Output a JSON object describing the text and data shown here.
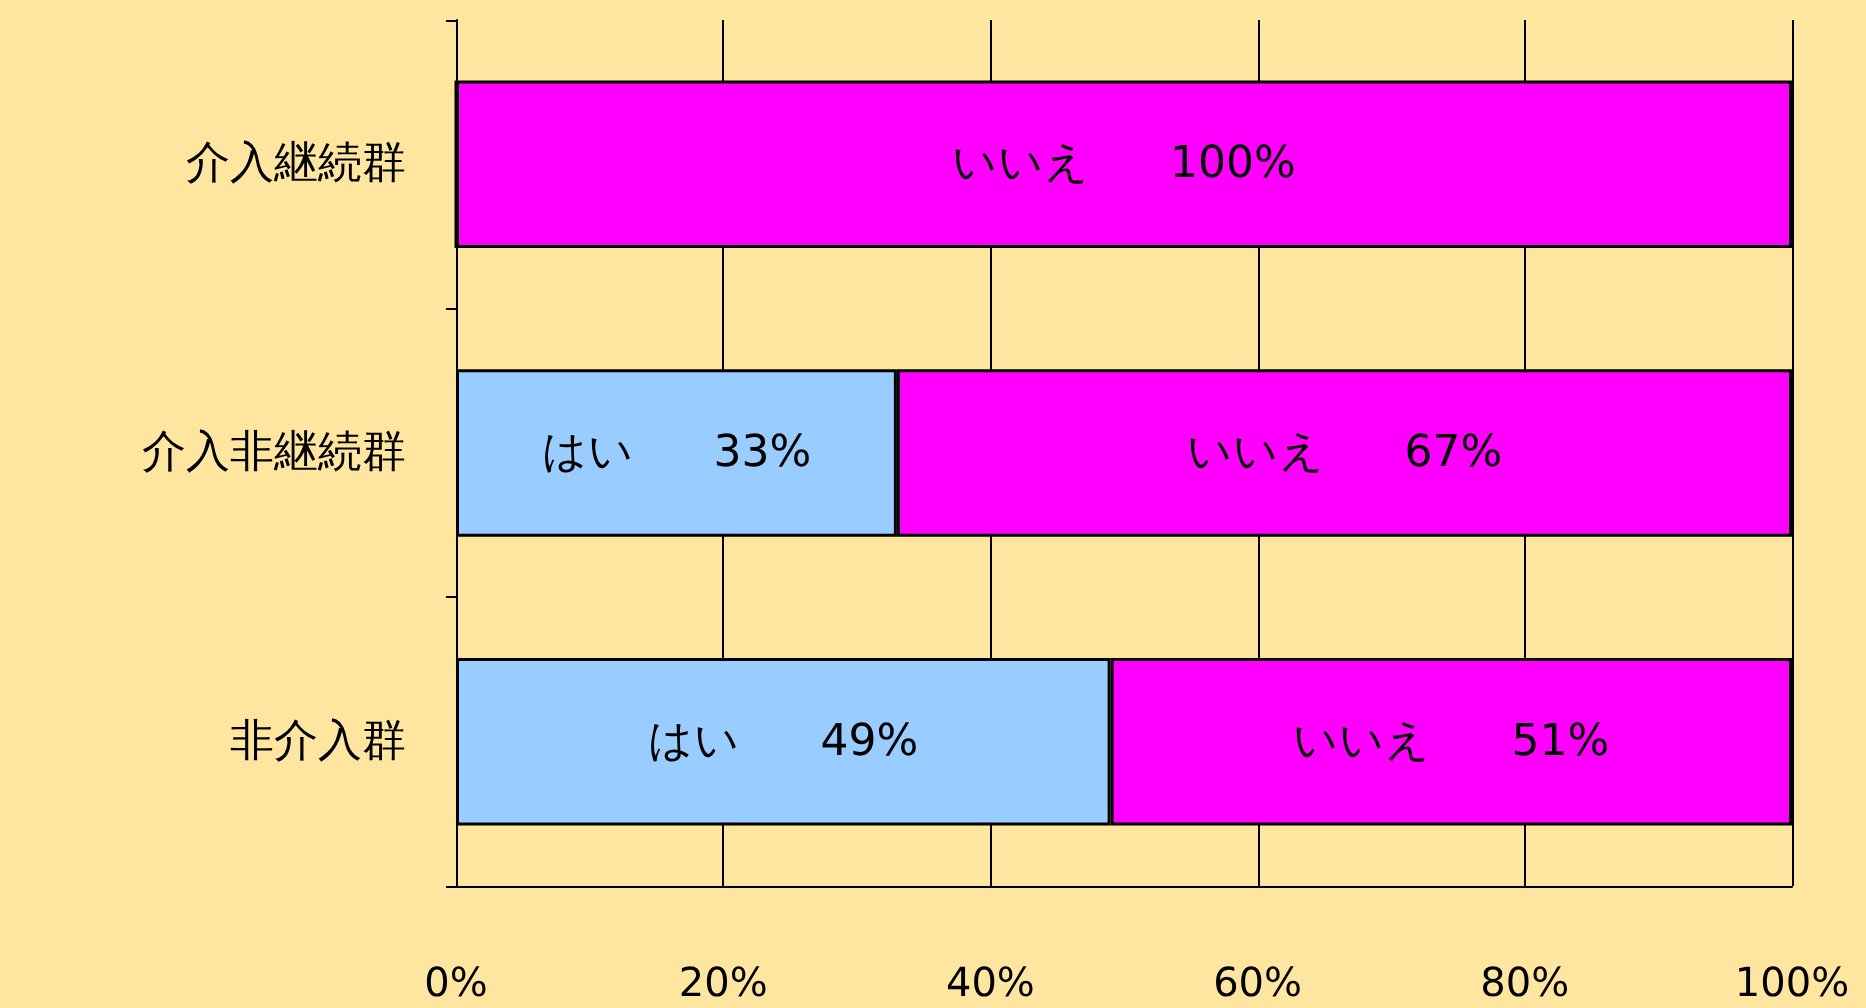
{
  "chart_data": {
    "type": "bar",
    "orientation": "horizontal",
    "stacked": true,
    "categories": [
      "介入継続群",
      "介入非継続群",
      "非介入群"
    ],
    "series": [
      {
        "name": "はい",
        "color": "#99ccff",
        "values": [
          0,
          33,
          49
        ],
        "value_labels": [
          null,
          "33%",
          "49%"
        ]
      },
      {
        "name": "いいえ",
        "color": "#ff00ff",
        "values": [
          100,
          67,
          51
        ],
        "value_labels": [
          "100%",
          "67%",
          "51%"
        ]
      }
    ],
    "xlim": [
      0,
      100
    ],
    "xticks": [
      {
        "value": 0,
        "label": "0%"
      },
      {
        "value": 20,
        "label": "20%"
      },
      {
        "value": 40,
        "label": "40%"
      },
      {
        "value": 60,
        "label": "60%"
      },
      {
        "value": 80,
        "label": "80%"
      },
      {
        "value": 100,
        "label": "100%"
      }
    ],
    "grid": "x",
    "legend": false
  }
}
